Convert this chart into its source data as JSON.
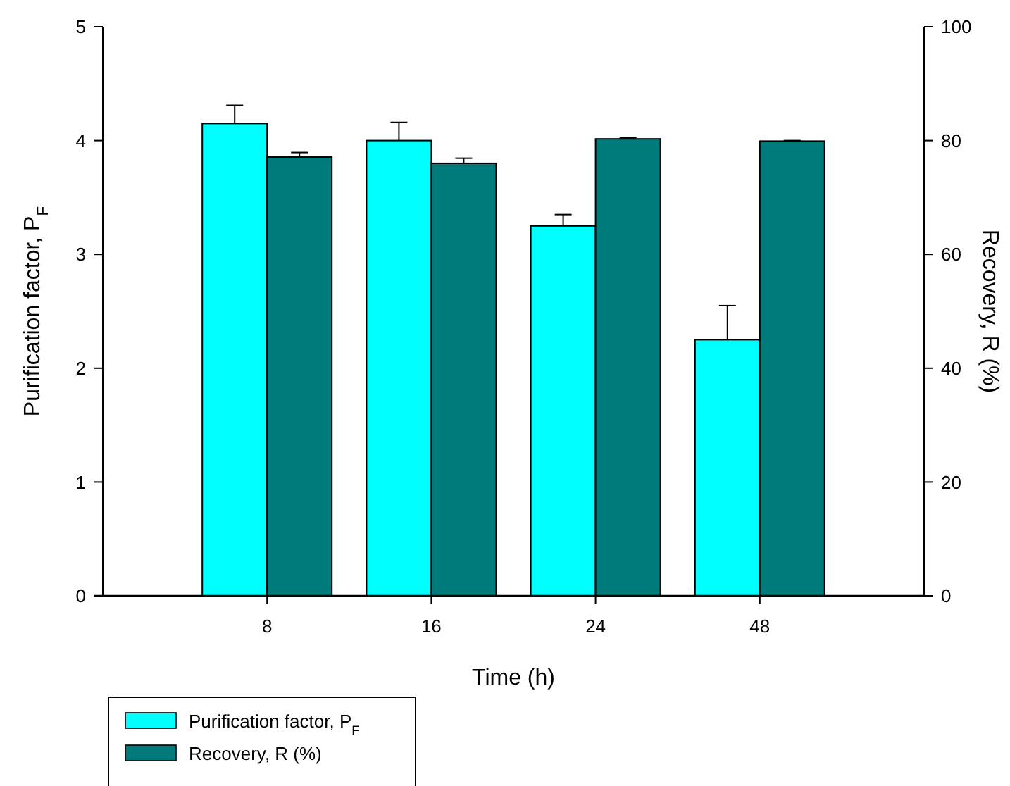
{
  "chart_data": {
    "type": "bar",
    "xlabel": "Time (h)",
    "ylabel": "Purification factor, P$_{F}$",
    "y2label": "Recovery, R (%)",
    "categories": [
      "8",
      "16",
      "24",
      "48"
    ],
    "series": [
      {
        "name": "Purification factor, P$_{F}$",
        "color": "#00ffff",
        "values": [
          4.15,
          4.0,
          3.25,
          2.25
        ],
        "errors": [
          0.16,
          0.16,
          0.1,
          0.3
        ]
      },
      {
        "name": "Recovery, R (%)",
        "color": "#007b7b",
        "axis": "y2",
        "values": [
          77.1,
          76.0,
          80.3,
          79.9
        ],
        "errors": [
          0.8,
          0.9,
          0.2,
          0.1
        ]
      }
    ],
    "ylim": [
      0,
      5
    ],
    "yticks": [
      0,
      1,
      2,
      3,
      4,
      5
    ],
    "y2lim": [
      0,
      100
    ],
    "y2ticks": [
      0,
      20,
      40,
      60,
      80,
      100
    ],
    "grid": false,
    "legend": "bottom left"
  }
}
